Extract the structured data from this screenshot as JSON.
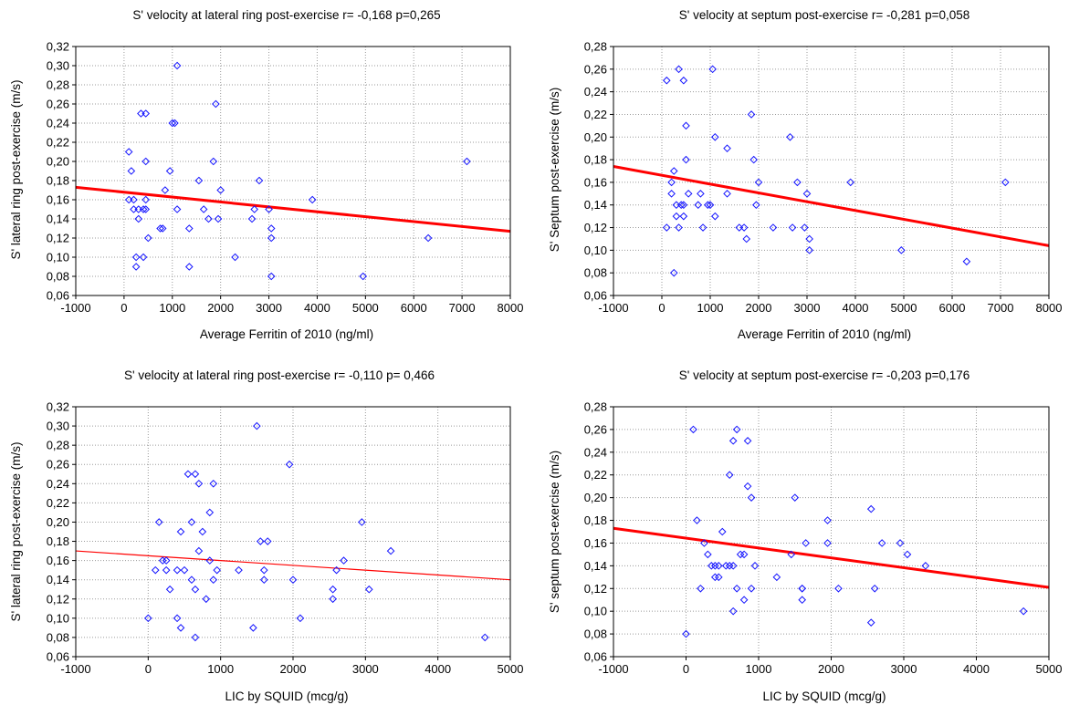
{
  "colors": {
    "points": "#1414ff",
    "fit_line": "#ff0000",
    "grid": "#9a9a9a",
    "axis": "#000000"
  },
  "chart_data": [
    {
      "type": "scatter",
      "title": "S' velocity at lateral ring post-exercise r= -0,168 p=0,265",
      "xlabel": "Average Ferritin of 2010 (ng/ml)",
      "ylabel": "S' lateral ring post-exercise (m/s)",
      "xlim": [
        -1000,
        8000
      ],
      "ylim": [
        0.06,
        0.32
      ],
      "xticks": [
        "-1000",
        "0",
        "1000",
        "2000",
        "3000",
        "4000",
        "5000",
        "6000",
        "7000",
        "8000"
      ],
      "yticks": [
        "0,06",
        "0,08",
        "0,10",
        "0,12",
        "0,14",
        "0,16",
        "0,18",
        "0,20",
        "0,22",
        "0,24",
        "0,26",
        "0,28",
        "0,30",
        "0,32"
      ],
      "grid": true,
      "fit_line": {
        "x": [
          -1000,
          8000
        ],
        "y": [
          0.173,
          0.127
        ],
        "width": "thick"
      },
      "points": [
        [
          100,
          0.21
        ],
        [
          100,
          0.16
        ],
        [
          150,
          0.19
        ],
        [
          200,
          0.16
        ],
        [
          200,
          0.15
        ],
        [
          250,
          0.1
        ],
        [
          250,
          0.09
        ],
        [
          300,
          0.15
        ],
        [
          300,
          0.14
        ],
        [
          350,
          0.25
        ],
        [
          400,
          0.15
        ],
        [
          400,
          0.1
        ],
        [
          450,
          0.25
        ],
        [
          450,
          0.15
        ],
        [
          450,
          0.16
        ],
        [
          450,
          0.2
        ],
        [
          500,
          0.12
        ],
        [
          750,
          0.13
        ],
        [
          800,
          0.13
        ],
        [
          850,
          0.17
        ],
        [
          950,
          0.19
        ],
        [
          1000,
          0.24
        ],
        [
          1050,
          0.24
        ],
        [
          1100,
          0.3
        ],
        [
          1100,
          0.15
        ],
        [
          1350,
          0.09
        ],
        [
          1350,
          0.13
        ],
        [
          1550,
          0.18
        ],
        [
          1650,
          0.15
        ],
        [
          1750,
          0.14
        ],
        [
          1850,
          0.2
        ],
        [
          1900,
          0.26
        ],
        [
          1950,
          0.14
        ],
        [
          2000,
          0.17
        ],
        [
          2300,
          0.1
        ],
        [
          2650,
          0.14
        ],
        [
          2700,
          0.15
        ],
        [
          2800,
          0.18
        ],
        [
          3000,
          0.15
        ],
        [
          3050,
          0.13
        ],
        [
          3050,
          0.12
        ],
        [
          3050,
          0.08
        ],
        [
          3900,
          0.16
        ],
        [
          4950,
          0.08
        ],
        [
          6300,
          0.12
        ],
        [
          7100,
          0.2
        ]
      ]
    },
    {
      "type": "scatter",
      "title": "S' velocity at septum post-exercise r= -0,281 p=0,058",
      "xlabel": "Average Ferritin of 2010 (ng/ml)",
      "ylabel": "S' Septum post-exercise (m/s)",
      "xlim": [
        -1000,
        8000
      ],
      "ylim": [
        0.06,
        0.28
      ],
      "xticks": [
        "-1000",
        "0",
        "1000",
        "2000",
        "3000",
        "4000",
        "5000",
        "6000",
        "7000",
        "8000"
      ],
      "yticks": [
        "0,06",
        "0,08",
        "0,10",
        "0,12",
        "0,14",
        "0,16",
        "0,18",
        "0,20",
        "0,22",
        "0,24",
        "0,26",
        "0,28"
      ],
      "grid": true,
      "fit_line": {
        "x": [
          -1000,
          8000
        ],
        "y": [
          0.174,
          0.104
        ],
        "width": "thick"
      },
      "points": [
        [
          100,
          0.25
        ],
        [
          100,
          0.12
        ],
        [
          200,
          0.16
        ],
        [
          200,
          0.15
        ],
        [
          250,
          0.17
        ],
        [
          250,
          0.08
        ],
        [
          300,
          0.14
        ],
        [
          300,
          0.13
        ],
        [
          350,
          0.26
        ],
        [
          350,
          0.12
        ],
        [
          400,
          0.14
        ],
        [
          450,
          0.14
        ],
        [
          450,
          0.13
        ],
        [
          450,
          0.25
        ],
        [
          500,
          0.21
        ],
        [
          500,
          0.18
        ],
        [
          550,
          0.15
        ],
        [
          750,
          0.14
        ],
        [
          800,
          0.15
        ],
        [
          850,
          0.12
        ],
        [
          950,
          0.14
        ],
        [
          1000,
          0.14
        ],
        [
          1050,
          0.26
        ],
        [
          1100,
          0.2
        ],
        [
          1100,
          0.13
        ],
        [
          1350,
          0.19
        ],
        [
          1350,
          0.15
        ],
        [
          1600,
          0.12
        ],
        [
          1700,
          0.12
        ],
        [
          1750,
          0.11
        ],
        [
          1850,
          0.22
        ],
        [
          1900,
          0.18
        ],
        [
          1950,
          0.14
        ],
        [
          2000,
          0.16
        ],
        [
          2300,
          0.12
        ],
        [
          2650,
          0.2
        ],
        [
          2700,
          0.12
        ],
        [
          2800,
          0.16
        ],
        [
          2950,
          0.12
        ],
        [
          3000,
          0.15
        ],
        [
          3050,
          0.11
        ],
        [
          3050,
          0.1
        ],
        [
          3900,
          0.16
        ],
        [
          4950,
          0.1
        ],
        [
          6300,
          0.09
        ],
        [
          7100,
          0.16
        ]
      ]
    },
    {
      "type": "scatter",
      "title": "S' velocity at lateral ring post-exercise r= -0,110 p= 0,466",
      "xlabel": "LIC by SQUID (mcg/g)",
      "ylabel": "S' lateral ring post-exercise (m/s)",
      "xlim": [
        -1000,
        5000
      ],
      "ylim": [
        0.06,
        0.32
      ],
      "xticks": [
        "-1000",
        "0",
        "1000",
        "2000",
        "3000",
        "4000",
        "5000"
      ],
      "yticks": [
        "0,06",
        "0,08",
        "0,10",
        "0,12",
        "0,14",
        "0,16",
        "0,18",
        "0,20",
        "0,22",
        "0,24",
        "0,26",
        "0,28",
        "0,30",
        "0,32"
      ],
      "grid": true,
      "fit_line": {
        "x": [
          -1000,
          5000
        ],
        "y": [
          0.17,
          0.14
        ],
        "width": "thin"
      },
      "points": [
        [
          0,
          0.1
        ],
        [
          100,
          0.15
        ],
        [
          150,
          0.2
        ],
        [
          200,
          0.16
        ],
        [
          250,
          0.16
        ],
        [
          250,
          0.15
        ],
        [
          300,
          0.13
        ],
        [
          400,
          0.15
        ],
        [
          400,
          0.1
        ],
        [
          450,
          0.09
        ],
        [
          450,
          0.19
        ],
        [
          500,
          0.15
        ],
        [
          550,
          0.25
        ],
        [
          600,
          0.2
        ],
        [
          600,
          0.14
        ],
        [
          650,
          0.25
        ],
        [
          650,
          0.13
        ],
        [
          650,
          0.08
        ],
        [
          700,
          0.24
        ],
        [
          700,
          0.17
        ],
        [
          750,
          0.19
        ],
        [
          800,
          0.12
        ],
        [
          850,
          0.21
        ],
        [
          850,
          0.16
        ],
        [
          900,
          0.14
        ],
        [
          900,
          0.24
        ],
        [
          950,
          0.15
        ],
        [
          1250,
          0.15
        ],
        [
          1450,
          0.09
        ],
        [
          1500,
          0.3
        ],
        [
          1550,
          0.18
        ],
        [
          1600,
          0.15
        ],
        [
          1600,
          0.14
        ],
        [
          1650,
          0.18
        ],
        [
          1950,
          0.26
        ],
        [
          2000,
          0.14
        ],
        [
          2100,
          0.1
        ],
        [
          2550,
          0.13
        ],
        [
          2550,
          0.12
        ],
        [
          2600,
          0.15
        ],
        [
          2700,
          0.16
        ],
        [
          2950,
          0.2
        ],
        [
          3050,
          0.13
        ],
        [
          3350,
          0.17
        ],
        [
          4650,
          0.08
        ]
      ]
    },
    {
      "type": "scatter",
      "title": "S' velocity at septum post-exercise r= -0,203 p=0,176",
      "xlabel": "LIC by SQUID (mcg/g)",
      "ylabel": "S' septum post-exercise (m/s)",
      "xlim": [
        -1000,
        5000
      ],
      "ylim": [
        0.06,
        0.28
      ],
      "xticks": [
        "-1000",
        "0",
        "1000",
        "2000",
        "3000",
        "4000",
        "5000"
      ],
      "yticks": [
        "0,06",
        "0,08",
        "0,10",
        "0,12",
        "0,14",
        "0,16",
        "0,18",
        "0,20",
        "0,22",
        "0,24",
        "0,26",
        "0,28"
      ],
      "grid": true,
      "fit_line": {
        "x": [
          -1000,
          5000
        ],
        "y": [
          0.173,
          0.121
        ],
        "width": "thick"
      },
      "points": [
        [
          0,
          0.08
        ],
        [
          100,
          0.26
        ],
        [
          150,
          0.18
        ],
        [
          200,
          0.12
        ],
        [
          250,
          0.16
        ],
        [
          300,
          0.15
        ],
        [
          350,
          0.14
        ],
        [
          400,
          0.14
        ],
        [
          400,
          0.13
        ],
        [
          450,
          0.13
        ],
        [
          450,
          0.14
        ],
        [
          500,
          0.17
        ],
        [
          550,
          0.14
        ],
        [
          600,
          0.14
        ],
        [
          600,
          0.22
        ],
        [
          650,
          0.25
        ],
        [
          650,
          0.14
        ],
        [
          650,
          0.1
        ],
        [
          700,
          0.26
        ],
        [
          700,
          0.12
        ],
        [
          750,
          0.15
        ],
        [
          800,
          0.15
        ],
        [
          800,
          0.11
        ],
        [
          850,
          0.25
        ],
        [
          850,
          0.21
        ],
        [
          900,
          0.2
        ],
        [
          900,
          0.12
        ],
        [
          950,
          0.14
        ],
        [
          1250,
          0.13
        ],
        [
          1450,
          0.15
        ],
        [
          1500,
          0.2
        ],
        [
          1600,
          0.12
        ],
        [
          1600,
          0.12
        ],
        [
          1600,
          0.11
        ],
        [
          1650,
          0.16
        ],
        [
          1950,
          0.18
        ],
        [
          1950,
          0.16
        ],
        [
          2100,
          0.12
        ],
        [
          2550,
          0.19
        ],
        [
          2550,
          0.09
        ],
        [
          2600,
          0.12
        ],
        [
          2700,
          0.16
        ],
        [
          2950,
          0.16
        ],
        [
          3050,
          0.15
        ],
        [
          3300,
          0.14
        ],
        [
          4650,
          0.1
        ]
      ]
    }
  ]
}
